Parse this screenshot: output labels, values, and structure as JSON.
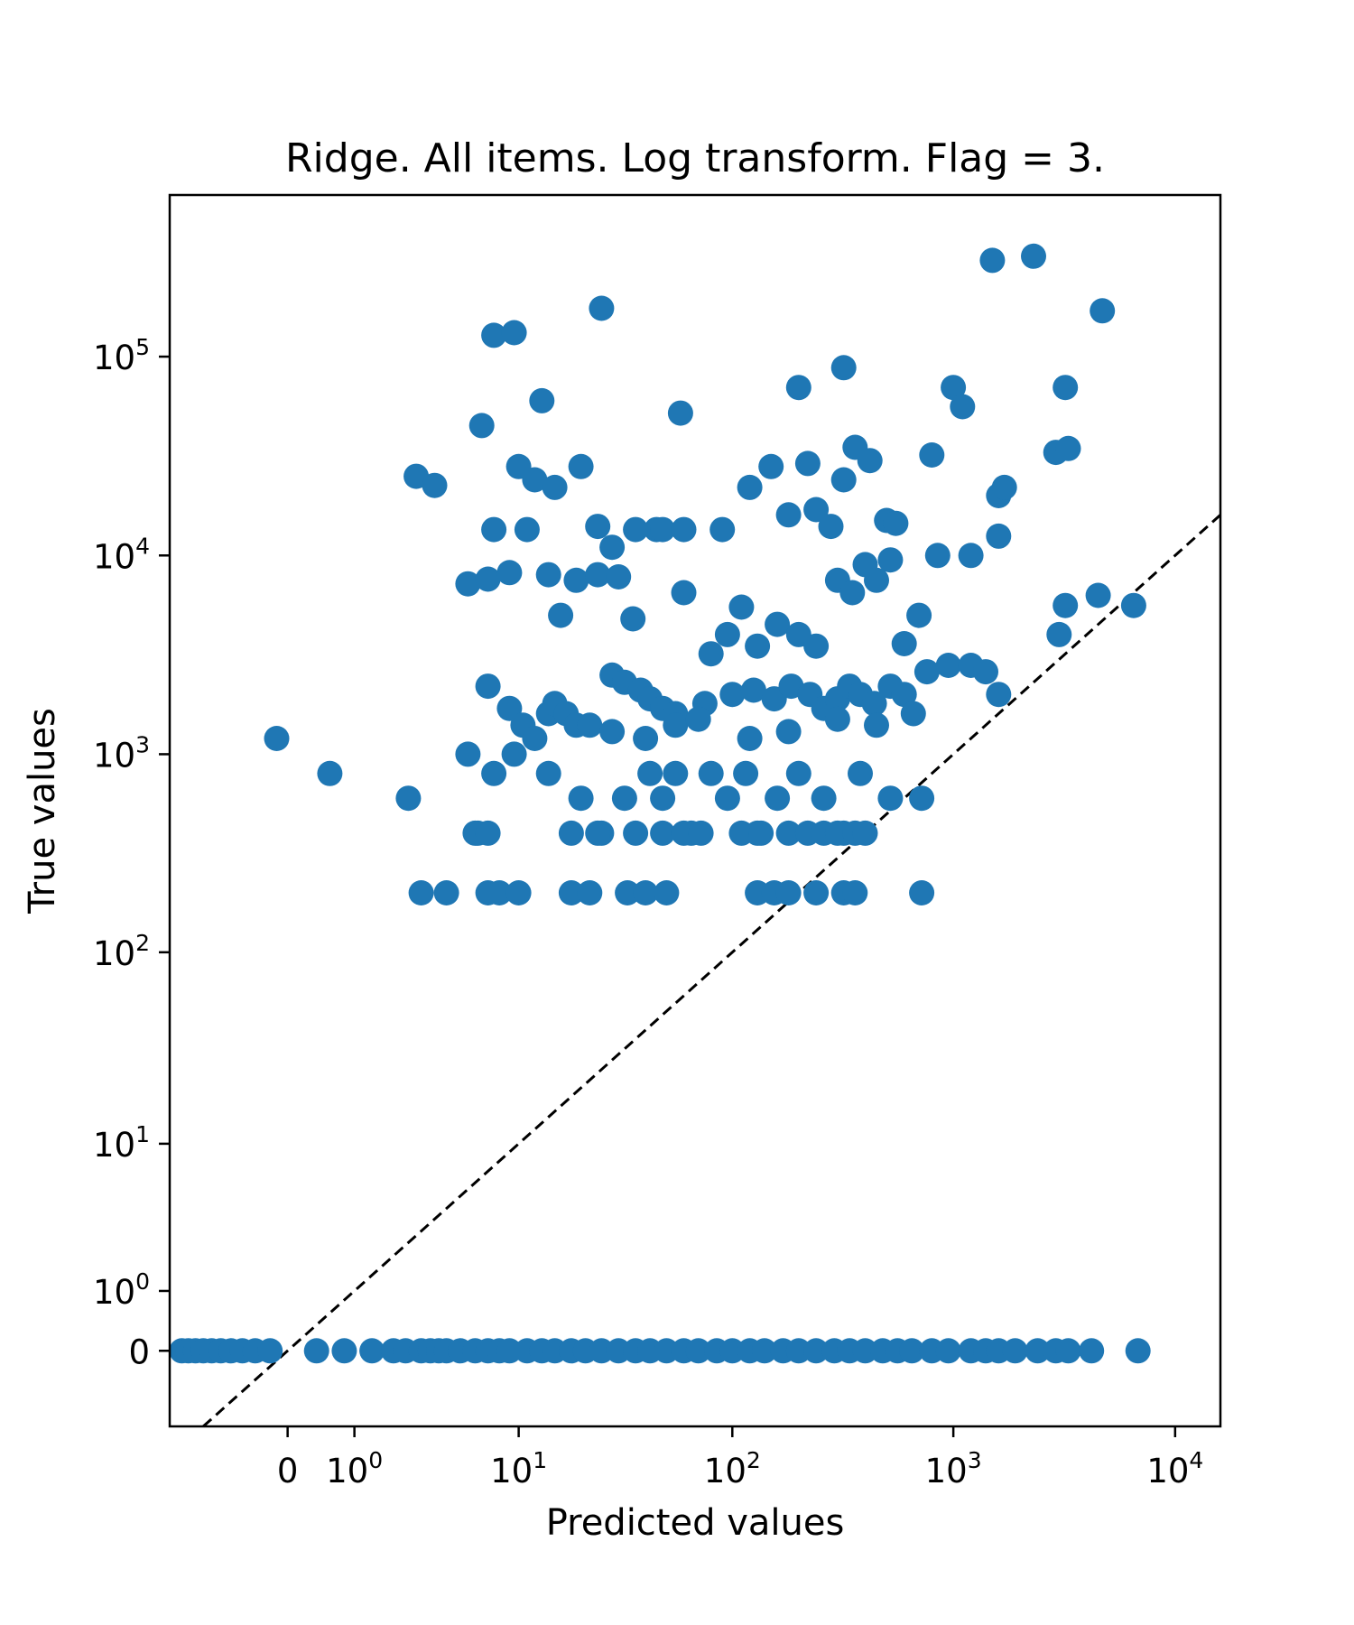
{
  "chart_data": {
    "type": "scatter",
    "title": "Ridge. All items. Log transform. Flag = 3.",
    "xlabel": "Predicted values",
    "ylabel": "True values",
    "scale": "symlog",
    "grid": false,
    "marker_color": "#1f77b4",
    "reference_line": {
      "style": "dashed",
      "color": "#000000",
      "equation": "y = x"
    },
    "xlim": [
      -2.4,
      16000
    ],
    "ylim": [
      -1.4,
      650000
    ],
    "x_ticks": [
      {
        "value": 0,
        "base": "0",
        "exp": ""
      },
      {
        "value": 1,
        "base": "10",
        "exp": "0"
      },
      {
        "value": 10,
        "base": "10",
        "exp": "1"
      },
      {
        "value": 100,
        "base": "10",
        "exp": "2"
      },
      {
        "value": 1000,
        "base": "10",
        "exp": "3"
      },
      {
        "value": 10000,
        "base": "10",
        "exp": "4"
      }
    ],
    "y_ticks": [
      {
        "value": 0,
        "base": "0",
        "exp": ""
      },
      {
        "value": 1,
        "base": "10",
        "exp": "0"
      },
      {
        "value": 10,
        "base": "10",
        "exp": "1"
      },
      {
        "value": 100,
        "base": "10",
        "exp": "2"
      },
      {
        "value": 1000,
        "base": "10",
        "exp": "3"
      },
      {
        "value": 10000,
        "base": "10",
        "exp": "4"
      },
      {
        "value": 100000,
        "base": "10",
        "exp": "5"
      }
    ],
    "points": [
      [
        -0.12,
        1200
      ],
      [
        0.55,
        800
      ],
      [
        2.5,
        600
      ],
      [
        5.5,
        1000
      ],
      [
        6.2,
        400
      ],
      [
        7.5,
        800
      ],
      [
        9.5,
        1000
      ],
      [
        14,
        800
      ],
      [
        20,
        600
      ],
      [
        25,
        400
      ],
      [
        32,
        600
      ],
      [
        42,
        800
      ],
      [
        48,
        600
      ],
      [
        55,
        800
      ],
      [
        65,
        400
      ],
      [
        80,
        800
      ],
      [
        95,
        600
      ],
      [
        115,
        800
      ],
      [
        130,
        400
      ],
      [
        160,
        600
      ],
      [
        200,
        800
      ],
      [
        260,
        600
      ],
      [
        320,
        400
      ],
      [
        380,
        800
      ],
      [
        520,
        600
      ],
      [
        720,
        600
      ],
      [
        3.0,
        200
      ],
      [
        4.2,
        200
      ],
      [
        7.0,
        200
      ],
      [
        8.0,
        200
      ],
      [
        10,
        200
      ],
      [
        18,
        200
      ],
      [
        22,
        200
      ],
      [
        33,
        200
      ],
      [
        40,
        200
      ],
      [
        50,
        200
      ],
      [
        130,
        200
      ],
      [
        155,
        200
      ],
      [
        180,
        200
      ],
      [
        240,
        200
      ],
      [
        320,
        200
      ],
      [
        360,
        200
      ],
      [
        720,
        200
      ],
      [
        6.0,
        400
      ],
      [
        7.0,
        400
      ],
      [
        18,
        400
      ],
      [
        24,
        400
      ],
      [
        36,
        400
      ],
      [
        48,
        400
      ],
      [
        60,
        400
      ],
      [
        72,
        400
      ],
      [
        110,
        400
      ],
      [
        135,
        400
      ],
      [
        180,
        400
      ],
      [
        220,
        400
      ],
      [
        260,
        400
      ],
      [
        300,
        400
      ],
      [
        360,
        400
      ],
      [
        400,
        400
      ],
      [
        7,
        2200
      ],
      [
        9,
        1700
      ],
      [
        10.5,
        1400
      ],
      [
        12,
        1200
      ],
      [
        14,
        1600
      ],
      [
        15,
        1800
      ],
      [
        17,
        1600
      ],
      [
        19,
        1400
      ],
      [
        28,
        2500
      ],
      [
        32,
        2300
      ],
      [
        38,
        2100
      ],
      [
        42,
        1900
      ],
      [
        48,
        1700
      ],
      [
        55,
        1600
      ],
      [
        75,
        1800
      ],
      [
        100,
        2000
      ],
      [
        125,
        2100
      ],
      [
        155,
        1900
      ],
      [
        185,
        2200
      ],
      [
        225,
        2000
      ],
      [
        260,
        1700
      ],
      [
        300,
        1900
      ],
      [
        340,
        2200
      ],
      [
        380,
        2000
      ],
      [
        440,
        1800
      ],
      [
        520,
        2200
      ],
      [
        600,
        2000
      ],
      [
        660,
        1600
      ],
      [
        760,
        2600
      ],
      [
        950,
        2800
      ],
      [
        1200,
        2800
      ],
      [
        1400,
        2600
      ],
      [
        1600,
        2000
      ],
      [
        22,
        1400
      ],
      [
        28,
        1300
      ],
      [
        40,
        1200
      ],
      [
        55,
        1400
      ],
      [
        70,
        1500
      ],
      [
        120,
        1200
      ],
      [
        180,
        1300
      ],
      [
        300,
        1500
      ],
      [
        450,
        1400
      ],
      [
        5.5,
        7200
      ],
      [
        7,
        7600
      ],
      [
        9,
        8200
      ],
      [
        11,
        13500
      ],
      [
        14,
        8000
      ],
      [
        16,
        5000
      ],
      [
        19,
        7500
      ],
      [
        24,
        8000
      ],
      [
        30,
        7800
      ],
      [
        35,
        4800
      ],
      [
        45,
        13500
      ],
      [
        60,
        6500
      ],
      [
        80,
        3200
      ],
      [
        95,
        4000
      ],
      [
        110,
        5500
      ],
      [
        130,
        3500
      ],
      [
        160,
        4500
      ],
      [
        200,
        4000
      ],
      [
        240,
        3500
      ],
      [
        300,
        7500
      ],
      [
        350,
        6500
      ],
      [
        400,
        9000
      ],
      [
        450,
        7500
      ],
      [
        520,
        9500
      ],
      [
        600,
        3600
      ],
      [
        700,
        5000
      ],
      [
        850,
        10000
      ],
      [
        1200,
        10000
      ],
      [
        1600,
        20000
      ],
      [
        3200,
        5600
      ],
      [
        4500,
        6300
      ],
      [
        6500,
        5600
      ],
      [
        3000,
        4000
      ],
      [
        2.8,
        25000
      ],
      [
        3.6,
        22500
      ],
      [
        6.5,
        45000
      ],
      [
        7.5,
        13500
      ],
      [
        10,
        28000
      ],
      [
        12,
        24000
      ],
      [
        15,
        22000
      ],
      [
        20,
        28000
      ],
      [
        24,
        14000
      ],
      [
        28,
        11000
      ],
      [
        36,
        13500
      ],
      [
        48,
        13500
      ],
      [
        60,
        13500
      ],
      [
        90,
        13500
      ],
      [
        120,
        22000
      ],
      [
        150,
        28000
      ],
      [
        180,
        16000
      ],
      [
        220,
        29000
      ],
      [
        240,
        17000
      ],
      [
        280,
        14000
      ],
      [
        320,
        24000
      ],
      [
        360,
        35000
      ],
      [
        420,
        30000
      ],
      [
        500,
        15000
      ],
      [
        550,
        14500
      ],
      [
        800,
        32000
      ],
      [
        1600,
        12500
      ],
      [
        1700,
        22000
      ],
      [
        2900,
        33000
      ],
      [
        3300,
        34500
      ],
      [
        7.5,
        128000
      ],
      [
        9.5,
        132000
      ],
      [
        13,
        60000
      ],
      [
        25,
        175000
      ],
      [
        58,
        52000
      ],
      [
        200,
        70000
      ],
      [
        320,
        88000
      ],
      [
        1000,
        70000
      ],
      [
        1100,
        56000
      ],
      [
        1500,
        305000
      ],
      [
        2300,
        320000
      ],
      [
        3200,
        70000
      ],
      [
        4700,
        170000
      ],
      [
        -2.0,
        0
      ],
      [
        -1.8,
        0
      ],
      [
        -1.6,
        0
      ],
      [
        -1.4,
        0
      ],
      [
        -1.2,
        0
      ],
      [
        -1.0,
        0
      ],
      [
        -0.8,
        0
      ],
      [
        -0.6,
        0
      ],
      [
        -0.4,
        0
      ],
      [
        -0.2,
        0
      ],
      [
        0.35,
        0
      ],
      [
        0.8,
        0
      ],
      [
        1.4,
        0
      ],
      [
        2.0,
        0
      ],
      [
        2.4,
        0
      ],
      [
        3.0,
        0
      ],
      [
        3.4,
        0
      ],
      [
        3.8,
        0
      ],
      [
        4.2,
        0
      ],
      [
        5.0,
        0
      ],
      [
        6.0,
        0
      ],
      [
        7.0,
        0
      ],
      [
        8.0,
        0
      ],
      [
        9.0,
        0
      ],
      [
        11,
        0
      ],
      [
        13,
        0
      ],
      [
        15,
        0
      ],
      [
        18,
        0
      ],
      [
        21,
        0
      ],
      [
        25,
        0
      ],
      [
        30,
        0
      ],
      [
        36,
        0
      ],
      [
        42,
        0
      ],
      [
        50,
        0
      ],
      [
        60,
        0
      ],
      [
        70,
        0
      ],
      [
        85,
        0
      ],
      [
        100,
        0
      ],
      [
        120,
        0
      ],
      [
        140,
        0
      ],
      [
        170,
        0
      ],
      [
        200,
        0
      ],
      [
        240,
        0
      ],
      [
        290,
        0
      ],
      [
        340,
        0
      ],
      [
        400,
        0
      ],
      [
        480,
        0
      ],
      [
        560,
        0
      ],
      [
        650,
        0
      ],
      [
        800,
        0
      ],
      [
        950,
        0
      ],
      [
        1200,
        0
      ],
      [
        1400,
        0
      ],
      [
        1600,
        0
      ],
      [
        1900,
        0
      ],
      [
        2400,
        0
      ],
      [
        2900,
        0
      ],
      [
        3300,
        0
      ],
      [
        4200,
        0
      ],
      [
        6800,
        0
      ]
    ]
  }
}
